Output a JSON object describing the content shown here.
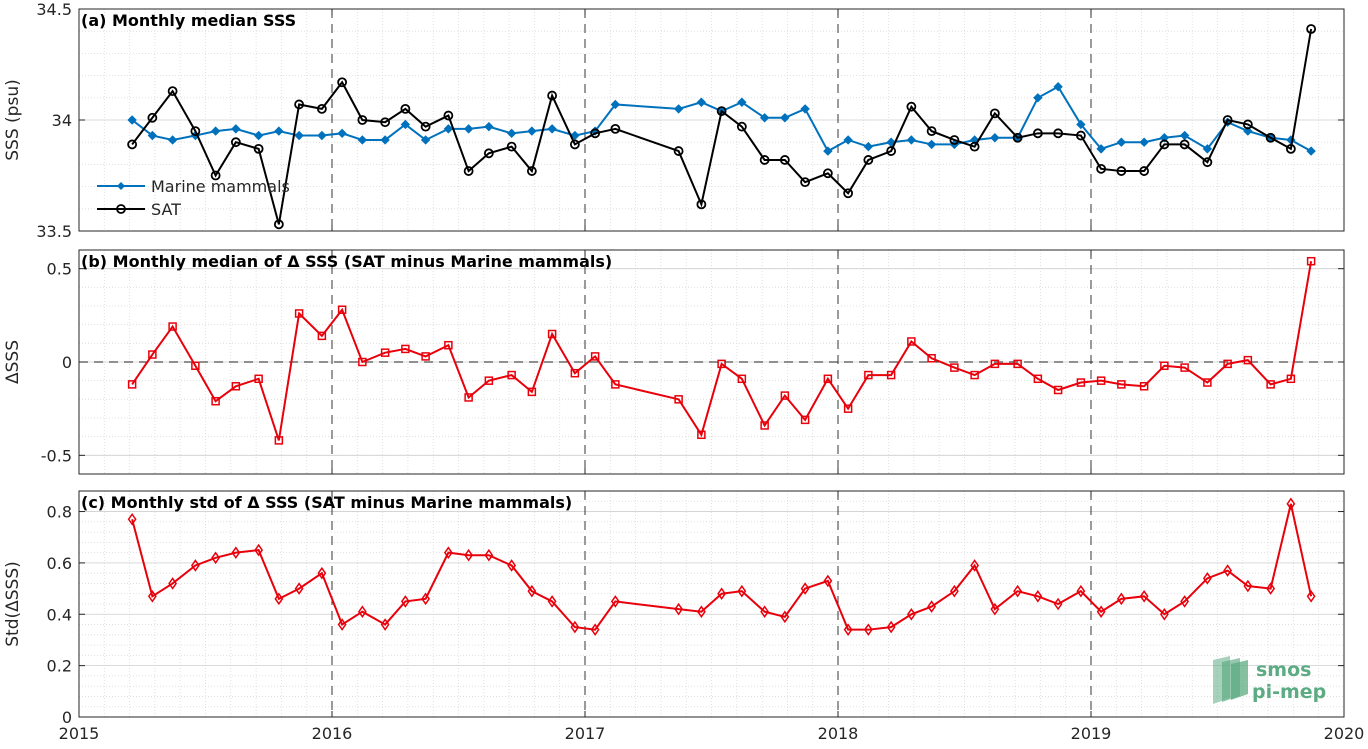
{
  "chart_data": [
    {
      "type": "line",
      "title": "(a) Monthly median SSS",
      "ylabel": "SSS (psu)",
      "ylim": [
        33.5,
        34.5
      ],
      "yticks": [
        33.5,
        34,
        34.5
      ],
      "ytick_labels": [
        "33.5",
        "34",
        "34.5"
      ],
      "xlim": [
        2015,
        2020
      ],
      "grid": "on (minor dotted)",
      "legend": "bottom-left",
      "series": [
        {
          "name": "Marine mammals",
          "color": "#0072BD",
          "marker": "diamond-filled",
          "x": [
            2015.21,
            2015.29,
            2015.37,
            2015.46,
            2015.54,
            2015.62,
            2015.71,
            2015.79,
            2015.87,
            2015.96,
            2016.04,
            2016.12,
            2016.21,
            2016.29,
            2016.37,
            2016.46,
            2016.54,
            2016.62,
            2016.71,
            2016.79,
            2016.87,
            2016.96,
            2017.04,
            2017.12,
            2017.37,
            2017.46,
            2017.54,
            2017.62,
            2017.71,
            2017.79,
            2017.87,
            2017.96,
            2018.04,
            2018.12,
            2018.21,
            2018.29,
            2018.37,
            2018.46,
            2018.54,
            2018.62,
            2018.71,
            2018.79,
            2018.87,
            2018.96,
            2019.04,
            2019.12,
            2019.21,
            2019.29,
            2019.37,
            2019.46,
            2019.54,
            2019.62,
            2019.71,
            2019.79,
            2019.87
          ],
          "values": [
            34.0,
            33.93,
            33.91,
            33.93,
            33.95,
            33.96,
            33.93,
            33.95,
            33.93,
            33.93,
            33.94,
            33.91,
            33.91,
            33.98,
            33.91,
            33.96,
            33.96,
            33.97,
            33.94,
            33.95,
            33.96,
            33.93,
            33.95,
            34.07,
            34.05,
            34.08,
            34.04,
            34.08,
            34.01,
            34.01,
            34.05,
            33.86,
            33.91,
            33.88,
            33.9,
            33.91,
            33.89,
            33.89,
            33.91,
            33.92,
            33.92,
            34.1,
            34.15,
            33.98,
            33.87,
            33.9,
            33.9,
            33.92,
            33.93,
            33.87,
            33.99,
            33.95,
            33.92,
            33.91,
            33.86
          ]
        },
        {
          "name": "SAT",
          "color": "#000000",
          "marker": "circle-open",
          "x": [
            2015.21,
            2015.29,
            2015.37,
            2015.46,
            2015.54,
            2015.62,
            2015.71,
            2015.79,
            2015.87,
            2015.96,
            2016.04,
            2016.12,
            2016.21,
            2016.29,
            2016.37,
            2016.46,
            2016.54,
            2016.62,
            2016.71,
            2016.79,
            2016.87,
            2016.96,
            2017.04,
            2017.12,
            2017.37,
            2017.46,
            2017.54,
            2017.62,
            2017.71,
            2017.79,
            2017.87,
            2017.96,
            2018.04,
            2018.12,
            2018.21,
            2018.29,
            2018.37,
            2018.46,
            2018.54,
            2018.62,
            2018.71,
            2018.79,
            2018.87,
            2018.96,
            2019.04,
            2019.12,
            2019.21,
            2019.29,
            2019.37,
            2019.46,
            2019.54,
            2019.62,
            2019.71,
            2019.79,
            2019.87
          ],
          "values": [
            33.89,
            34.01,
            34.13,
            33.95,
            33.75,
            33.9,
            33.87,
            33.53,
            34.07,
            34.05,
            34.17,
            34.0,
            33.99,
            34.05,
            33.97,
            34.02,
            33.77,
            33.85,
            33.88,
            33.77,
            34.11,
            33.89,
            33.94,
            33.96,
            33.86,
            33.62,
            34.04,
            33.97,
            33.82,
            33.82,
            33.72,
            33.76,
            33.67,
            33.82,
            33.86,
            34.06,
            33.95,
            33.91,
            33.88,
            34.03,
            33.92,
            33.94,
            33.94,
            33.93,
            33.78,
            33.77,
            33.77,
            33.89,
            33.89,
            33.81,
            34.0,
            33.98,
            33.92,
            33.87,
            34.41
          ]
        }
      ]
    },
    {
      "type": "line",
      "title": "(b) Monthly median of Δ SSS (SAT minus Marine mammals)",
      "ylabel": "ΔSSS",
      "ylim": [
        -0.6,
        0.6
      ],
      "yticks": [
        -0.5,
        0,
        0.5
      ],
      "ytick_labels": [
        "-0.5",
        "0",
        "0.5"
      ],
      "xlim": [
        2015,
        2020
      ],
      "grid": "on (minor dotted)",
      "zero_line": "dashed",
      "series": [
        {
          "name": "",
          "color": "#E8000B",
          "marker": "square-open",
          "x": [
            2015.21,
            2015.29,
            2015.37,
            2015.46,
            2015.54,
            2015.62,
            2015.71,
            2015.79,
            2015.87,
            2015.96,
            2016.04,
            2016.12,
            2016.21,
            2016.29,
            2016.37,
            2016.46,
            2016.54,
            2016.62,
            2016.71,
            2016.79,
            2016.87,
            2016.96,
            2017.04,
            2017.12,
            2017.37,
            2017.46,
            2017.54,
            2017.62,
            2017.71,
            2017.79,
            2017.87,
            2017.96,
            2018.04,
            2018.12,
            2018.21,
            2018.29,
            2018.37,
            2018.46,
            2018.54,
            2018.62,
            2018.71,
            2018.79,
            2018.87,
            2018.96,
            2019.04,
            2019.12,
            2019.21,
            2019.29,
            2019.37,
            2019.46,
            2019.54,
            2019.62,
            2019.71,
            2019.79,
            2019.87
          ],
          "values": [
            -0.12,
            0.04,
            0.19,
            -0.02,
            -0.21,
            -0.13,
            -0.09,
            -0.42,
            0.26,
            0.14,
            0.28,
            0.0,
            0.05,
            0.07,
            0.03,
            0.09,
            -0.19,
            -0.1,
            -0.07,
            -0.16,
            0.15,
            -0.06,
            0.03,
            -0.12,
            -0.2,
            -0.39,
            -0.01,
            -0.09,
            -0.34,
            -0.18,
            -0.31,
            -0.09,
            -0.25,
            -0.07,
            -0.07,
            0.11,
            0.02,
            -0.03,
            -0.07,
            -0.01,
            -0.01,
            -0.09,
            -0.15,
            -0.11,
            -0.1,
            -0.12,
            -0.13,
            -0.02,
            -0.03,
            -0.11,
            -0.01,
            0.01,
            -0.12,
            -0.09,
            0.54
          ]
        }
      ]
    },
    {
      "type": "line",
      "title": "(c) Monthly std of Δ SSS (SAT minus Marine mammals)",
      "ylabel": "Std(ΔSSS)",
      "ylim": [
        0,
        0.88
      ],
      "yticks": [
        0,
        0.2,
        0.4,
        0.6,
        0.8
      ],
      "ytick_labels": [
        "0",
        "0.2",
        "0.4",
        "0.6",
        "0.8"
      ],
      "xlim": [
        2015,
        2020
      ],
      "xticks": [
        2015,
        2016,
        2017,
        2018,
        2019,
        2020
      ],
      "xtick_labels": [
        "2015",
        "2016",
        "2017",
        "2018",
        "2019",
        "2020"
      ],
      "grid": "on (minor dotted)",
      "series": [
        {
          "name": "",
          "color": "#E8000B",
          "marker": "diamond-open",
          "x": [
            2015.21,
            2015.29,
            2015.37,
            2015.46,
            2015.54,
            2015.62,
            2015.71,
            2015.79,
            2015.87,
            2015.96,
            2016.04,
            2016.12,
            2016.21,
            2016.29,
            2016.37,
            2016.46,
            2016.54,
            2016.62,
            2016.71,
            2016.79,
            2016.87,
            2016.96,
            2017.04,
            2017.12,
            2017.37,
            2017.46,
            2017.54,
            2017.62,
            2017.71,
            2017.79,
            2017.87,
            2017.96,
            2018.04,
            2018.12,
            2018.21,
            2018.29,
            2018.37,
            2018.46,
            2018.54,
            2018.62,
            2018.71,
            2018.79,
            2018.87,
            2018.96,
            2019.04,
            2019.12,
            2019.21,
            2019.29,
            2019.37,
            2019.46,
            2019.54,
            2019.62,
            2019.71,
            2019.79,
            2019.87
          ],
          "values": [
            0.77,
            0.47,
            0.52,
            0.59,
            0.62,
            0.64,
            0.65,
            0.46,
            0.5,
            0.56,
            0.36,
            0.41,
            0.36,
            0.45,
            0.46,
            0.64,
            0.63,
            0.63,
            0.59,
            0.49,
            0.45,
            0.35,
            0.34,
            0.45,
            0.42,
            0.41,
            0.48,
            0.49,
            0.41,
            0.39,
            0.5,
            0.53,
            0.34,
            0.34,
            0.35,
            0.4,
            0.43,
            0.49,
            0.59,
            0.42,
            0.49,
            0.47,
            0.44,
            0.49,
            0.41,
            0.46,
            0.47,
            0.4,
            0.45,
            0.54,
            0.57,
            0.51,
            0.5,
            0.83,
            0.47
          ]
        }
      ]
    }
  ],
  "logo": {
    "line1": "smos",
    "line2": "pi-mep",
    "color": "#5cab82"
  }
}
